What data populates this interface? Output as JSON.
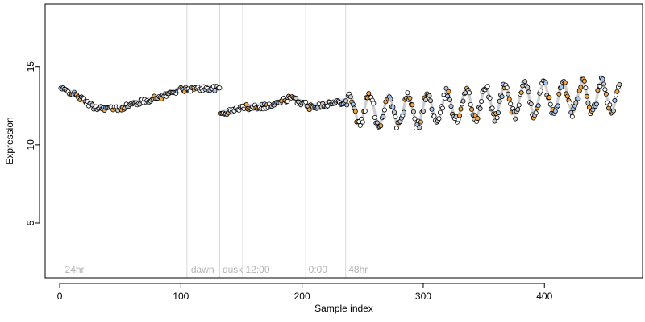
{
  "chart_data": {
    "type": "scatter",
    "title": "",
    "xlabel": "Sample index",
    "ylabel": "Expression",
    "xlim": [
      -12,
      481
    ],
    "ylim": [
      1.5,
      19
    ],
    "x_ticks": [
      0,
      100,
      200,
      300,
      400
    ],
    "y_ticks": [
      5,
      10,
      15
    ],
    "grid": false,
    "legend": "none",
    "phase_boundaries": [
      105,
      132,
      151,
      203,
      236
    ],
    "phase_labels": [
      {
        "text": "24hr",
        "x": 3
      },
      {
        "text": "dawn",
        "x": 107
      },
      {
        "text": "dusk",
        "x": 133
      },
      {
        "text": "12:00",
        "x": 152
      },
      {
        "text": "0:00",
        "x": 204
      },
      {
        "text": "48hr",
        "x": 237
      }
    ],
    "segments": [
      {
        "start": 1,
        "end": 132,
        "knots": [
          [
            1,
            13.6
          ],
          [
            15,
            13.1
          ],
          [
            28,
            12.4
          ],
          [
            48,
            12.3
          ],
          [
            65,
            12.7
          ],
          [
            85,
            13.1
          ],
          [
            98,
            13.5
          ],
          [
            118,
            13.6
          ],
          [
            132,
            13.6
          ]
        ],
        "amp": 0,
        "period": 24,
        "noise": 0.15
      },
      {
        "start": 133,
        "end": 151,
        "knots": [
          [
            133,
            12.0
          ],
          [
            140,
            12.1
          ],
          [
            146,
            12.3
          ],
          [
            151,
            12.4
          ]
        ],
        "amp": 0,
        "period": 24,
        "noise": 0.15
      },
      {
        "start": 152,
        "end": 203,
        "knots": [
          [
            152,
            12.4
          ],
          [
            175,
            12.5
          ],
          [
            190,
            13.0
          ],
          [
            203,
            12.6
          ]
        ],
        "amp": 0,
        "period": 24,
        "noise": 0.18
      },
      {
        "start": 204,
        "end": 236,
        "knots": [
          [
            204,
            12.4
          ],
          [
            220,
            12.6
          ],
          [
            236,
            12.8
          ]
        ],
        "amp": 0,
        "period": 24,
        "noise": 0.18
      },
      {
        "start": 237,
        "end": 462,
        "knots": [
          [
            237,
            12.2
          ],
          [
            260,
            12.2
          ],
          [
            290,
            12.1
          ],
          [
            330,
            12.5
          ],
          [
            380,
            12.9
          ],
          [
            430,
            13.0
          ],
          [
            462,
            13.1
          ]
        ],
        "amp": 0.95,
        "period": 16,
        "noise": 0.3
      }
    ],
    "point_colors": [
      "#f4a742",
      "#a9c7ee",
      "#ffffff",
      "#ffffff",
      "#c9c9c9"
    ],
    "trend_colors": [
      "#e6b98a",
      "#a9c3e3"
    ]
  },
  "colors": {
    "axis": "#000000",
    "phase_line": "#d9d9d9",
    "phase_text": "#b3b3b3",
    "point_stroke": "#000000"
  }
}
